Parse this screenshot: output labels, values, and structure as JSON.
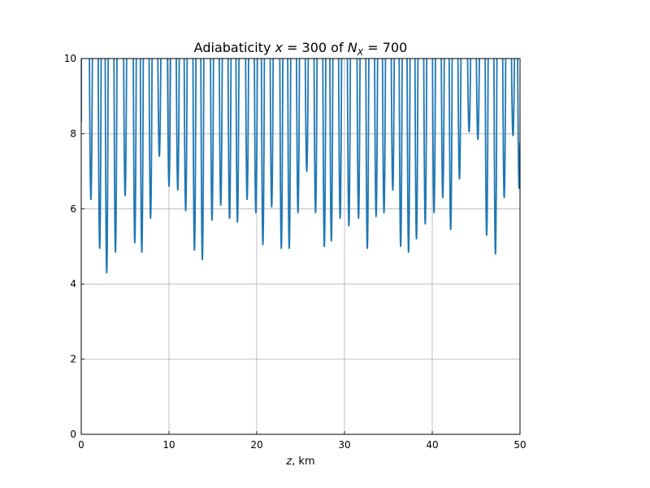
{
  "chart_data": {
    "type": "line",
    "title_prefix": "Adiabaticity ",
    "title_x": "x",
    "title_eq1": " = 300 of ",
    "title_N": "N",
    "title_sub": "X",
    "title_eq2": " = 700",
    "xlabel_var": "z",
    "xlabel_unit": ", km",
    "ylabel": "",
    "xlim": [
      0,
      50
    ],
    "ylim": [
      0,
      10
    ],
    "xticks": [
      0,
      10,
      20,
      30,
      40,
      50
    ],
    "xtick_labels": [
      "0",
      "10",
      "20",
      "30",
      "40",
      "50"
    ],
    "yticks": [
      0,
      2,
      4,
      6,
      8,
      10
    ],
    "ytick_labels": [
      "0",
      "2",
      "4",
      "6",
      "8",
      "10"
    ],
    "grid": true,
    "series_color": "#1f77b4",
    "grid_color": "#b0b0b0",
    "start_value": 8.3,
    "end_value": 6.6,
    "minima": [
      {
        "x": 1.1,
        "y": 6.25
      },
      {
        "x": 2.1,
        "y": 4.95
      },
      {
        "x": 2.9,
        "y": 4.3
      },
      {
        "x": 3.9,
        "y": 4.85
      },
      {
        "x": 5.0,
        "y": 6.35
      },
      {
        "x": 6.1,
        "y": 5.1
      },
      {
        "x": 6.9,
        "y": 4.85
      },
      {
        "x": 7.9,
        "y": 5.75
      },
      {
        "x": 8.9,
        "y": 7.4
      },
      {
        "x": 10.0,
        "y": 6.6
      },
      {
        "x": 11.0,
        "y": 6.5
      },
      {
        "x": 11.9,
        "y": 5.95
      },
      {
        "x": 12.9,
        "y": 4.9
      },
      {
        "x": 13.8,
        "y": 4.65
      },
      {
        "x": 14.9,
        "y": 5.7
      },
      {
        "x": 15.9,
        "y": 6.1
      },
      {
        "x": 16.9,
        "y": 5.75
      },
      {
        "x": 17.8,
        "y": 5.65
      },
      {
        "x": 18.9,
        "y": 6.25
      },
      {
        "x": 19.9,
        "y": 5.9
      },
      {
        "x": 20.7,
        "y": 5.05
      },
      {
        "x": 21.7,
        "y": 6.05
      },
      {
        "x": 22.8,
        "y": 4.95
      },
      {
        "x": 23.7,
        "y": 4.95
      },
      {
        "x": 24.7,
        "y": 5.9
      },
      {
        "x": 25.7,
        "y": 7.0
      },
      {
        "x": 26.7,
        "y": 5.9
      },
      {
        "x": 27.7,
        "y": 5.0
      },
      {
        "x": 28.5,
        "y": 5.15
      },
      {
        "x": 29.5,
        "y": 5.75
      },
      {
        "x": 30.5,
        "y": 5.55
      },
      {
        "x": 31.6,
        "y": 5.75
      },
      {
        "x": 32.6,
        "y": 4.95
      },
      {
        "x": 33.6,
        "y": 5.8
      },
      {
        "x": 34.5,
        "y": 5.9
      },
      {
        "x": 35.5,
        "y": 6.5
      },
      {
        "x": 36.4,
        "y": 5.0
      },
      {
        "x": 37.3,
        "y": 4.85
      },
      {
        "x": 38.2,
        "y": 5.2
      },
      {
        "x": 39.2,
        "y": 5.6
      },
      {
        "x": 40.2,
        "y": 5.9
      },
      {
        "x": 41.2,
        "y": 6.3
      },
      {
        "x": 42.1,
        "y": 5.45
      },
      {
        "x": 43.1,
        "y": 6.8
      },
      {
        "x": 44.2,
        "y": 8.05
      },
      {
        "x": 45.2,
        "y": 7.85
      },
      {
        "x": 46.2,
        "y": 5.3
      },
      {
        "x": 47.2,
        "y": 4.8
      },
      {
        "x": 48.2,
        "y": 6.3
      },
      {
        "x": 49.2,
        "y": 7.95
      },
      {
        "x": 49.9,
        "y": 6.55
      }
    ]
  }
}
